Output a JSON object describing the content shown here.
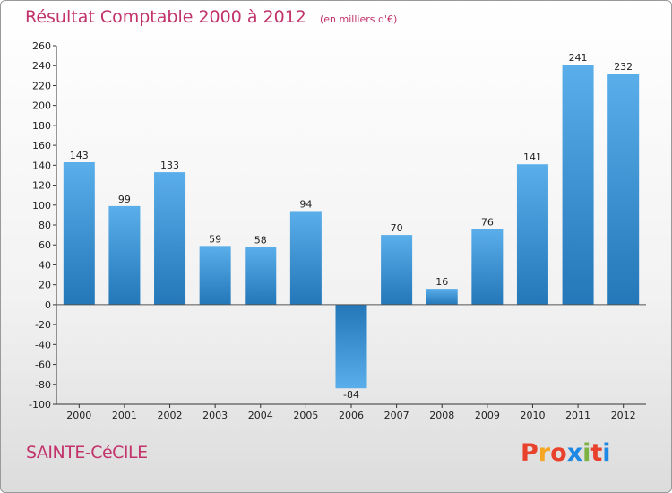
{
  "header": {
    "title": "Résultat Comptable 2000 à 2012",
    "subtitle": "(en milliers d'€)"
  },
  "footer": {
    "commune": "SAINTE-CéCILE",
    "logo": "Proxiti",
    "logo_colors": [
      "#e8412c",
      "#f5a623",
      "#e8412c",
      "#1e88e5",
      "#7cb342",
      "#e8412c",
      "#1e88e5"
    ]
  },
  "chart_data": {
    "type": "bar",
    "title": "Résultat Comptable 2000 à 2012",
    "subtitle": "(en milliers d'€)",
    "categories": [
      "2000",
      "2001",
      "2002",
      "2003",
      "2004",
      "2005",
      "2006",
      "2007",
      "2008",
      "2009",
      "2010",
      "2011",
      "2012"
    ],
    "values": [
      143,
      99,
      133,
      59,
      58,
      94,
      -84,
      70,
      16,
      76,
      141,
      241,
      232
    ],
    "ylim": [
      -100,
      260
    ],
    "yticks": [
      -100,
      -80,
      -60,
      -40,
      -20,
      0,
      20,
      40,
      60,
      80,
      100,
      120,
      140,
      160,
      180,
      200,
      220,
      240,
      260
    ],
    "grid": false,
    "xlabel": "",
    "ylabel": "",
    "bar_color": "#3d8fd6"
  }
}
